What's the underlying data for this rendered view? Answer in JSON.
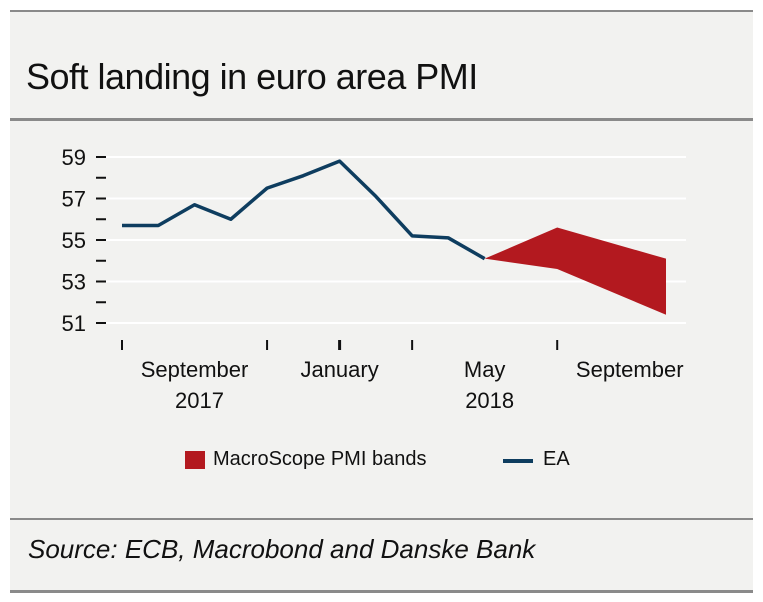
{
  "title": "Soft landing in euro area PMI",
  "source": "Source: ECB, Macrobond and Danske Bank",
  "legend": {
    "band_label": "MacroScope PMI bands",
    "line_label": "EA"
  },
  "colors": {
    "band": "#b3191f",
    "line": "#0e3d5f",
    "background": "#f2f2f0"
  },
  "chart_data": {
    "type": "line",
    "title": "Soft landing in euro area PMI",
    "ylim": [
      50,
      60
    ],
    "yticks": [
      51,
      53,
      55,
      57,
      59
    ],
    "grid": true,
    "x_tick_labels": [
      {
        "month": 8.5,
        "label": "September",
        "year_label": "2017"
      },
      {
        "month": 12.5,
        "label": "January",
        "year_label": ""
      },
      {
        "month": 16.5,
        "label": "May",
        "year_label": "2018"
      },
      {
        "month": 20.5,
        "label": "September",
        "year_label": ""
      }
    ],
    "series": [
      {
        "name": "EA",
        "kind": "line",
        "points": [
          {
            "month": 6.5,
            "value": 55.7
          },
          {
            "month": 7.5,
            "value": 55.7
          },
          {
            "month": 8.5,
            "value": 56.7
          },
          {
            "month": 9.5,
            "value": 56.0
          },
          {
            "month": 10.5,
            "value": 57.5
          },
          {
            "month": 11.5,
            "value": 58.1
          },
          {
            "month": 12.5,
            "value": 58.8
          },
          {
            "month": 13.5,
            "value": 57.1
          },
          {
            "month": 14.5,
            "value": 55.2
          },
          {
            "month": 15.5,
            "value": 55.1
          },
          {
            "month": 16.5,
            "value": 54.1
          }
        ]
      },
      {
        "name": "MacroScope PMI bands",
        "kind": "band",
        "points": [
          {
            "month": 16.5,
            "upper": 54.1,
            "lower": 54.1
          },
          {
            "month": 18.5,
            "upper": 55.6,
            "lower": 53.6
          },
          {
            "month": 21.5,
            "upper": 54.1,
            "lower": 51.4
          }
        ]
      }
    ]
  }
}
